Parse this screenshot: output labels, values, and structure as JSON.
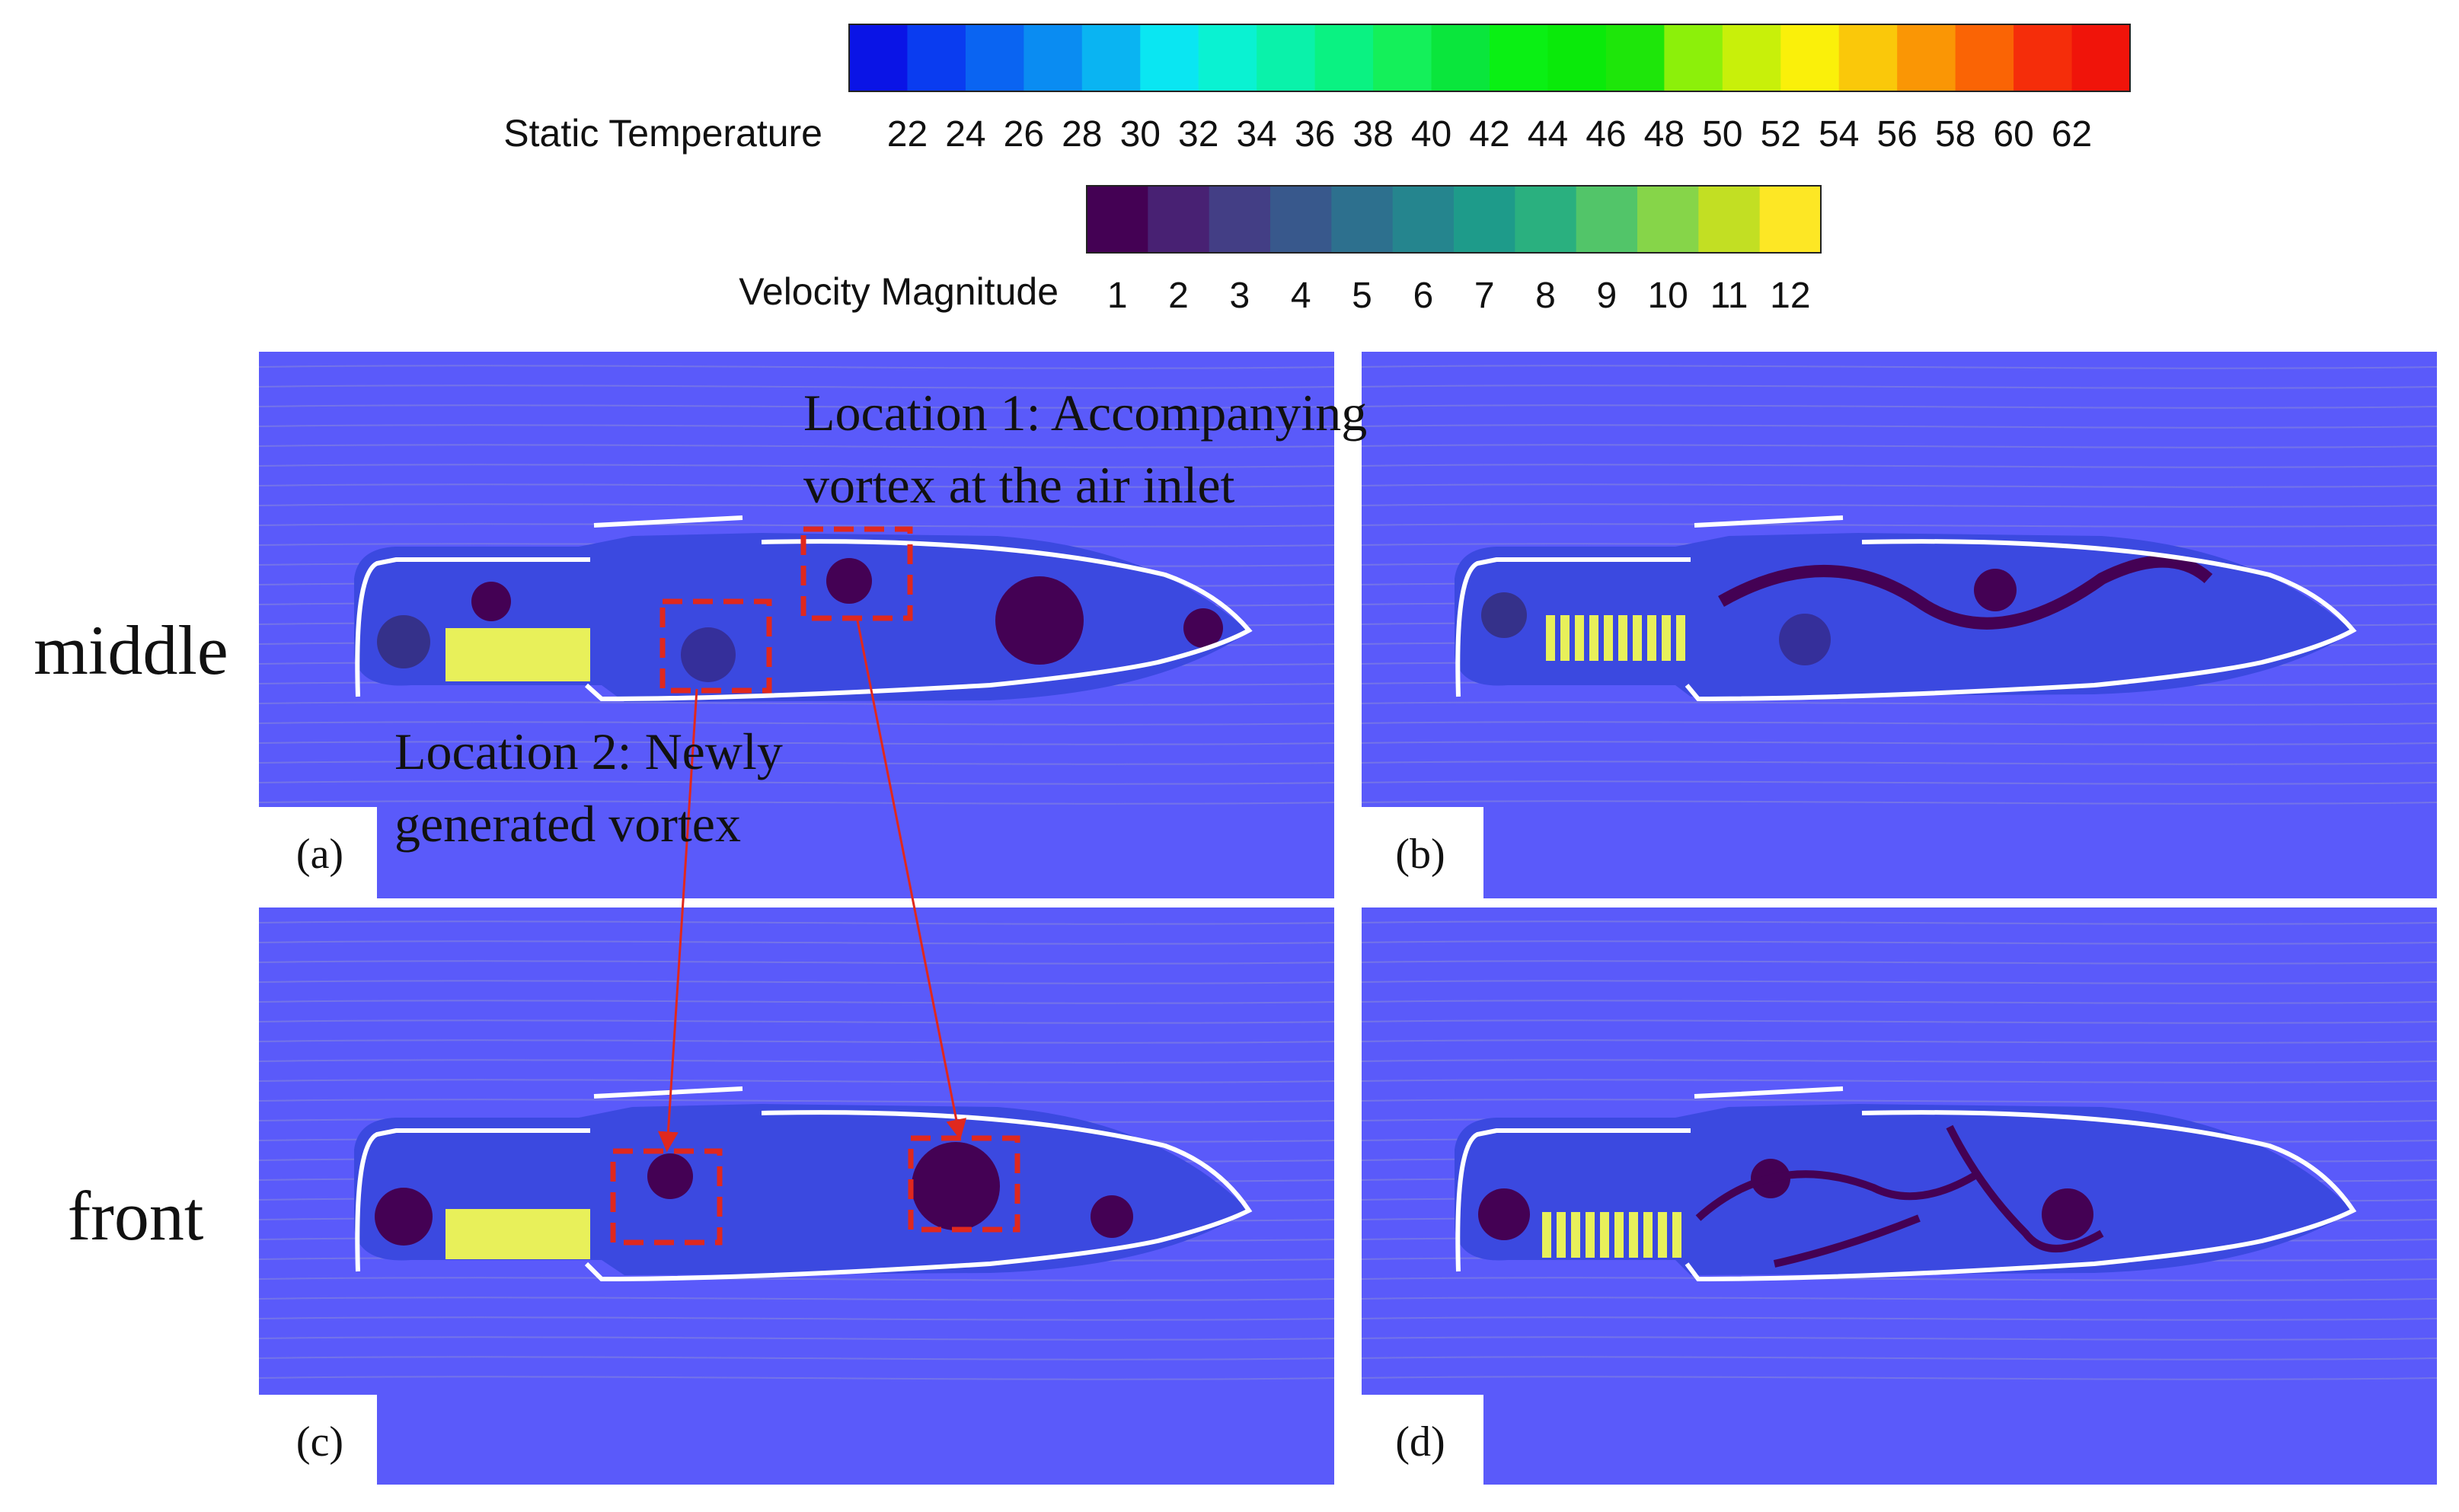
{
  "colorbars": {
    "temperature": {
      "title": "Static Temperature",
      "ticks": [
        "22",
        "24",
        "26",
        "28",
        "30",
        "32",
        "34",
        "36",
        "38",
        "40",
        "42",
        "44",
        "46",
        "48",
        "50",
        "52",
        "54",
        "56",
        "58",
        "60",
        "62"
      ],
      "colors": [
        "#0a14e6",
        "#0a3cf0",
        "#0a64f2",
        "#0a8cf2",
        "#0ab4f2",
        "#0ae6f2",
        "#0af2d2",
        "#0af2aa",
        "#0af282",
        "#14f05a",
        "#0ae63c",
        "#0af014",
        "#0aea0a",
        "#1ee60a",
        "#8cf00a",
        "#c8f00a",
        "#faf00a",
        "#fac80a",
        "#fa9605",
        "#fa6405",
        "#f52d0a",
        "#f0140a"
      ]
    },
    "velocity": {
      "title": "Velocity Magnitude",
      "ticks": [
        "1",
        "2",
        "3",
        "4",
        "5",
        "6",
        "7",
        "8",
        "9",
        "10",
        "11",
        "12"
      ],
      "colors": [
        "#440154",
        "#482173",
        "#433e85",
        "#38588c",
        "#2d708e",
        "#25858e",
        "#1e9b8a",
        "#2ab07f",
        "#52c569",
        "#86d549",
        "#c2df23",
        "#fde725"
      ]
    }
  },
  "row_labels": {
    "middle": "middle",
    "front": "front"
  },
  "panels": {
    "a": {
      "label": "(a)"
    },
    "b": {
      "label": "(b)"
    },
    "c": {
      "label": "(c)"
    },
    "d": {
      "label": "(d)"
    }
  },
  "annotations": {
    "location1": {
      "line1": "Location 1: Accompanying",
      "line2": "vortex at the air inlet"
    },
    "location2": {
      "line1": "Location 2: Newly",
      "line2": "generated vortex"
    }
  },
  "colors": {
    "background_field": "#5a5afa",
    "cabin_interior": "#3b49e0",
    "wall": "#ffffff",
    "vortex": "#440154",
    "streamline": "#8a8ad8",
    "arrow": "#6fbf8a",
    "battery": "#e8f05a",
    "annotation": "#e0281e"
  }
}
